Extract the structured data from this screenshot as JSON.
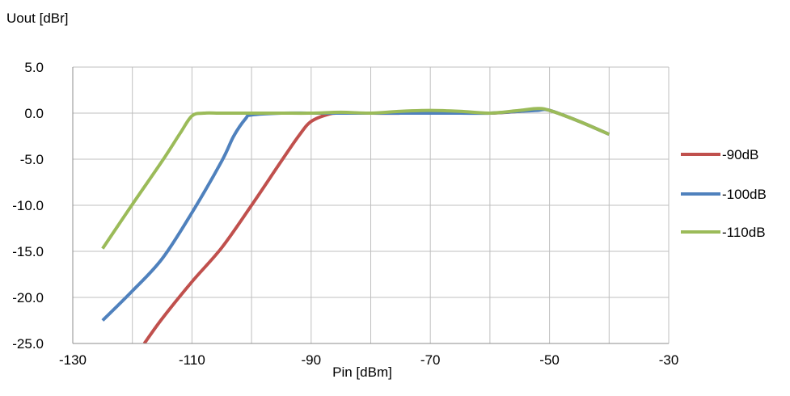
{
  "chart_data": {
    "type": "line",
    "title": "",
    "ylabel": "Uout [dBr]",
    "xlabel": "Pin [dBm]",
    "xlim": [
      -130,
      -30
    ],
    "ylim": [
      -25,
      5
    ],
    "x_ticks": [
      -130,
      -110,
      -90,
      -70,
      -50,
      -30
    ],
    "x_tick_labels": [
      "-130",
      "-110",
      "-90",
      "-70",
      "-50",
      "-30"
    ],
    "x_grid_step": 10,
    "y_ticks": [
      5,
      0,
      -5,
      -10,
      -15,
      -20,
      -25
    ],
    "y_tick_labels": [
      "5.0",
      "0.0",
      "-5.0",
      "-10.0",
      "-15.0",
      "-20.0",
      "-25.0"
    ],
    "grid": true,
    "legend_position": "right",
    "series": [
      {
        "name": "-90dB",
        "color": "#c0504d",
        "x": [
          -118,
          -115,
          -110,
          -105,
          -100,
          -95,
          -92,
          -90,
          -87,
          -85,
          -80,
          -75,
          -70,
          -65,
          -60,
          -55,
          -52,
          -50,
          -45,
          -40
        ],
        "y": [
          -25,
          -22.3,
          -18.3,
          -14.6,
          -10,
          -5.2,
          -2.4,
          -0.9,
          -0.1,
          0,
          0,
          0,
          0.2,
          0.1,
          0,
          0.2,
          0.4,
          0.3,
          -0.9,
          -2.3
        ]
      },
      {
        "name": "-100dB",
        "color": "#4f81bd",
        "x": [
          -125,
          -120,
          -115,
          -110,
          -105,
          -103,
          -101,
          -100,
          -95,
          -90,
          -85,
          -80,
          -75,
          -70,
          -65,
          -60,
          -55,
          -52,
          -50,
          -45,
          -40
        ],
        "y": [
          -22.5,
          -19.3,
          -15.8,
          -10.8,
          -5.2,
          -2.5,
          -0.6,
          -0.2,
          0,
          0,
          0,
          0,
          0,
          0,
          0,
          0,
          0.2,
          0.3,
          0.3,
          -0.9,
          -2.3
        ]
      },
      {
        "name": "-110dB",
        "color": "#9bbb59",
        "x": [
          -125,
          -120,
          -115,
          -112,
          -110,
          -108,
          -105,
          -100,
          -95,
          -90,
          -85,
          -80,
          -75,
          -70,
          -65,
          -60,
          -55,
          -52,
          -50,
          -45,
          -40
        ],
        "y": [
          -14.7,
          -9.9,
          -5.2,
          -2.2,
          -0.3,
          0,
          0,
          0,
          0,
          0,
          0.1,
          0,
          0.2,
          0.3,
          0.2,
          0,
          0.3,
          0.5,
          0.3,
          -0.9,
          -2.3
        ]
      }
    ]
  }
}
